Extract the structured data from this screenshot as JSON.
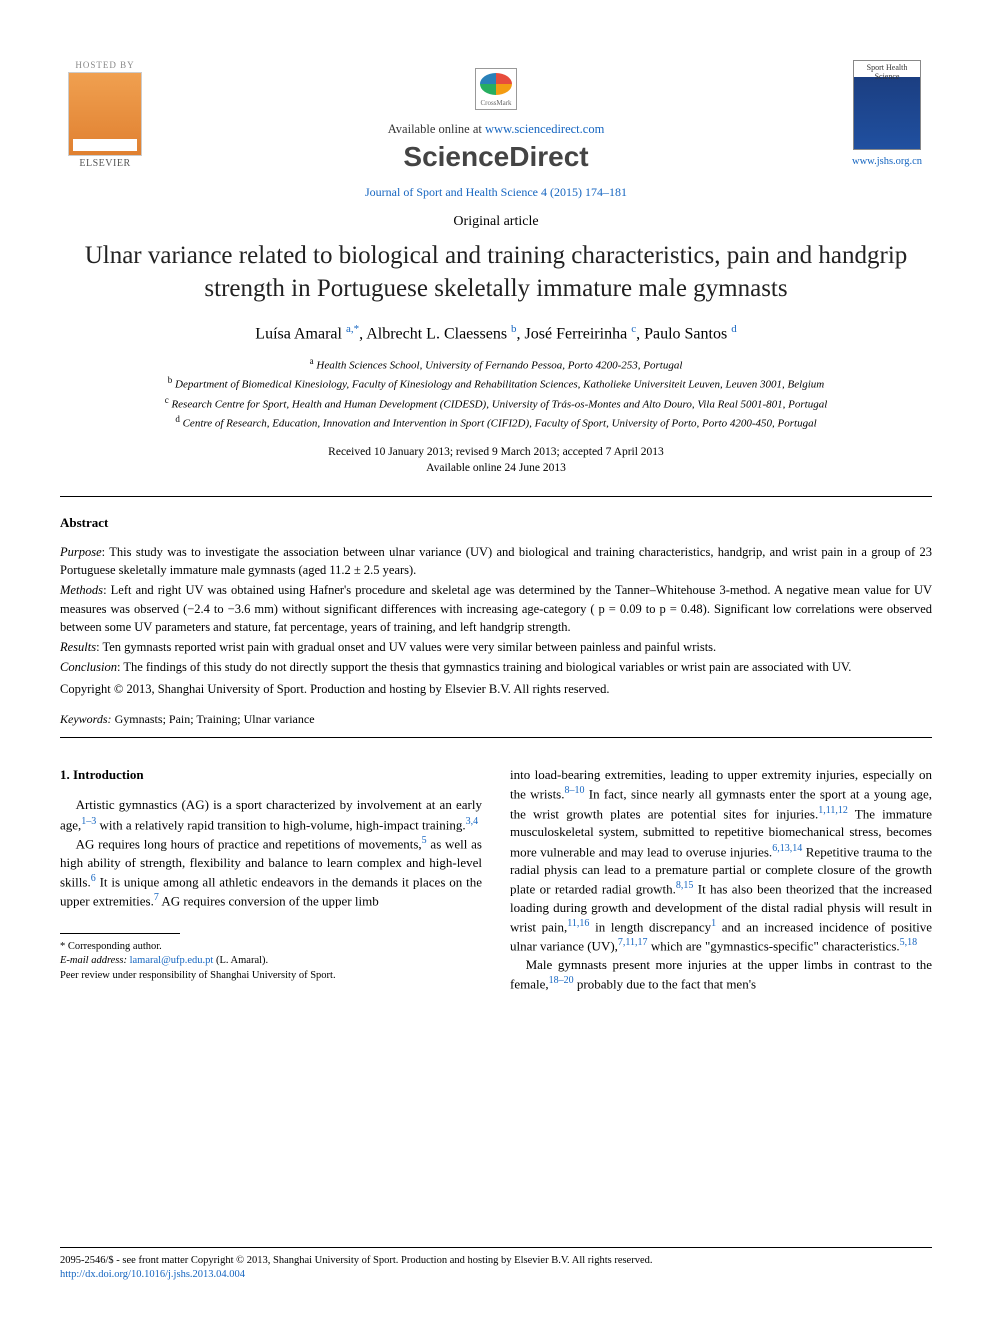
{
  "header": {
    "hosted_by": "HOSTED BY",
    "elsevier": "ELSEVIER",
    "crossmark": "CrossMark",
    "available_prefix": "Available online at ",
    "available_url": "www.sciencedirect.com",
    "science_direct": "ScienceDirect",
    "journal_citation": "Journal of Sport and Health Science 4 (2015) 174–181",
    "cover_label": "Sport Health Science",
    "jshs_url": "www.jshs.org.cn"
  },
  "article": {
    "type": "Original article",
    "title": "Ulnar variance related to biological and training characteristics, pain and handgrip strength in Portuguese skeletally immature male gymnasts",
    "authors_html": "Luísa Amaral <sup>a,*</sup>, Albrecht L. Claessens <sup>b</sup>, José Ferreirinha <sup>c</sup>, Paulo Santos <sup>d</sup>",
    "affiliations": {
      "a": "Health Sciences School, University of Fernando Pessoa, Porto 4200-253, Portugal",
      "b": "Department of Biomedical Kinesiology, Faculty of Kinesiology and Rehabilitation Sciences, Katholieke Universiteit Leuven, Leuven 3001, Belgium",
      "c": "Research Centre for Sport, Health and Human Development (CIDESD), University of Trás-os-Montes and Alto Douro, Vila Real 5001-801, Portugal",
      "d": "Centre of Research, Education, Innovation and Intervention in Sport (CIFI2D), Faculty of Sport, University of Porto, Porto 4200-450, Portugal"
    },
    "dates_line1": "Received 10 January 2013; revised 9 March 2013; accepted 7 April 2013",
    "dates_line2": "Available online 24 June 2013"
  },
  "abstract": {
    "heading": "Abstract",
    "purpose": "This study was to investigate the association between ulnar variance (UV) and biological and training characteristics, handgrip, and wrist pain in a group of 23 Portuguese skeletally immature male gymnasts (aged 11.2 ± 2.5 years).",
    "methods": "Left and right UV was obtained using Hafner's procedure and skeletal age was determined by the Tanner–Whitehouse 3-method. A negative mean value for UV measures was observed (−2.4 to −3.6 mm) without significant differences with increasing age-category ( p = 0.09 to p = 0.48). Significant low correlations were observed between some UV parameters and stature, fat percentage, years of training, and left handgrip strength.",
    "results": "Ten gymnasts reported wrist pain with gradual onset and UV values were very similar between painless and painful wrists.",
    "conclusion": "The findings of this study do not directly support the thesis that gymnastics training and biological variables or wrist pain are associated with UV.",
    "copyright": "Copyright © 2013, Shanghai University of Sport. Production and hosting by Elsevier B.V. All rights reserved.",
    "keywords_label": "Keywords:",
    "keywords": "Gymnasts; Pain; Training; Ulnar variance"
  },
  "body": {
    "intro_heading": "1. Introduction",
    "col1_p1": "Artistic gymnastics (AG) is a sport characterized by involvement at an early age,|1–3| with a relatively rapid transition to high-volume, high-impact training.|3,4|",
    "col1_p2": "AG requires long hours of practice and repetitions of movements,|5| as well as high ability of strength, flexibility and balance to learn complex and high-level skills.|6| It is unique among all athletic endeavors in the demands it places on the upper extremities.|7| AG requires conversion of the upper limb",
    "col2_p1": "into load-bearing extremities, leading to upper extremity injuries, especially on the wrists.|8–10| In fact, since nearly all gymnasts enter the sport at a young age, the wrist growth plates are potential sites for injuries.|1,11,12| The immature musculoskeletal system, submitted to repetitive biomechanical stress, becomes more vulnerable and may lead to overuse injuries.|6,13,14| Repetitive trauma to the radial physis can lead to a premature partial or complete closure of the growth plate or retarded radial growth.|8,15| It has also been theorized that the increased loading during growth and development of the distal radial physis will result in wrist pain,|11,16| in length discrepancy|1| and an increased incidence of positive ulnar variance (UV),|7,11,17| which are \"gymnastics-specific\" characteristics.|5,18|",
    "col2_p2": "Male gymnasts present more injuries at the upper limbs in contrast to the female,|18–20| probably due to the fact that men's"
  },
  "footnotes": {
    "corresponding": "* Corresponding author.",
    "email_label": "E-mail address:",
    "email": "lamaral@ufp.edu.pt",
    "email_name": "(L. Amaral).",
    "peer_review": "Peer review under responsibility of Shanghai University of Sport."
  },
  "footer": {
    "line1": "2095-2546/$ - see front matter Copyright © 2013, Shanghai University of Sport. Production and hosting by Elsevier B.V. All rights reserved.",
    "doi": "http://dx.doi.org/10.1016/j.jshs.2013.04.004"
  },
  "colors": {
    "link": "#1565c0",
    "text": "#000000",
    "elsevier_gradient_top": "#f0a050",
    "elsevier_gradient_bottom": "#e08030",
    "cover_gradient_top": "#1a3a7a",
    "cover_gradient_bottom": "#2050a0"
  }
}
